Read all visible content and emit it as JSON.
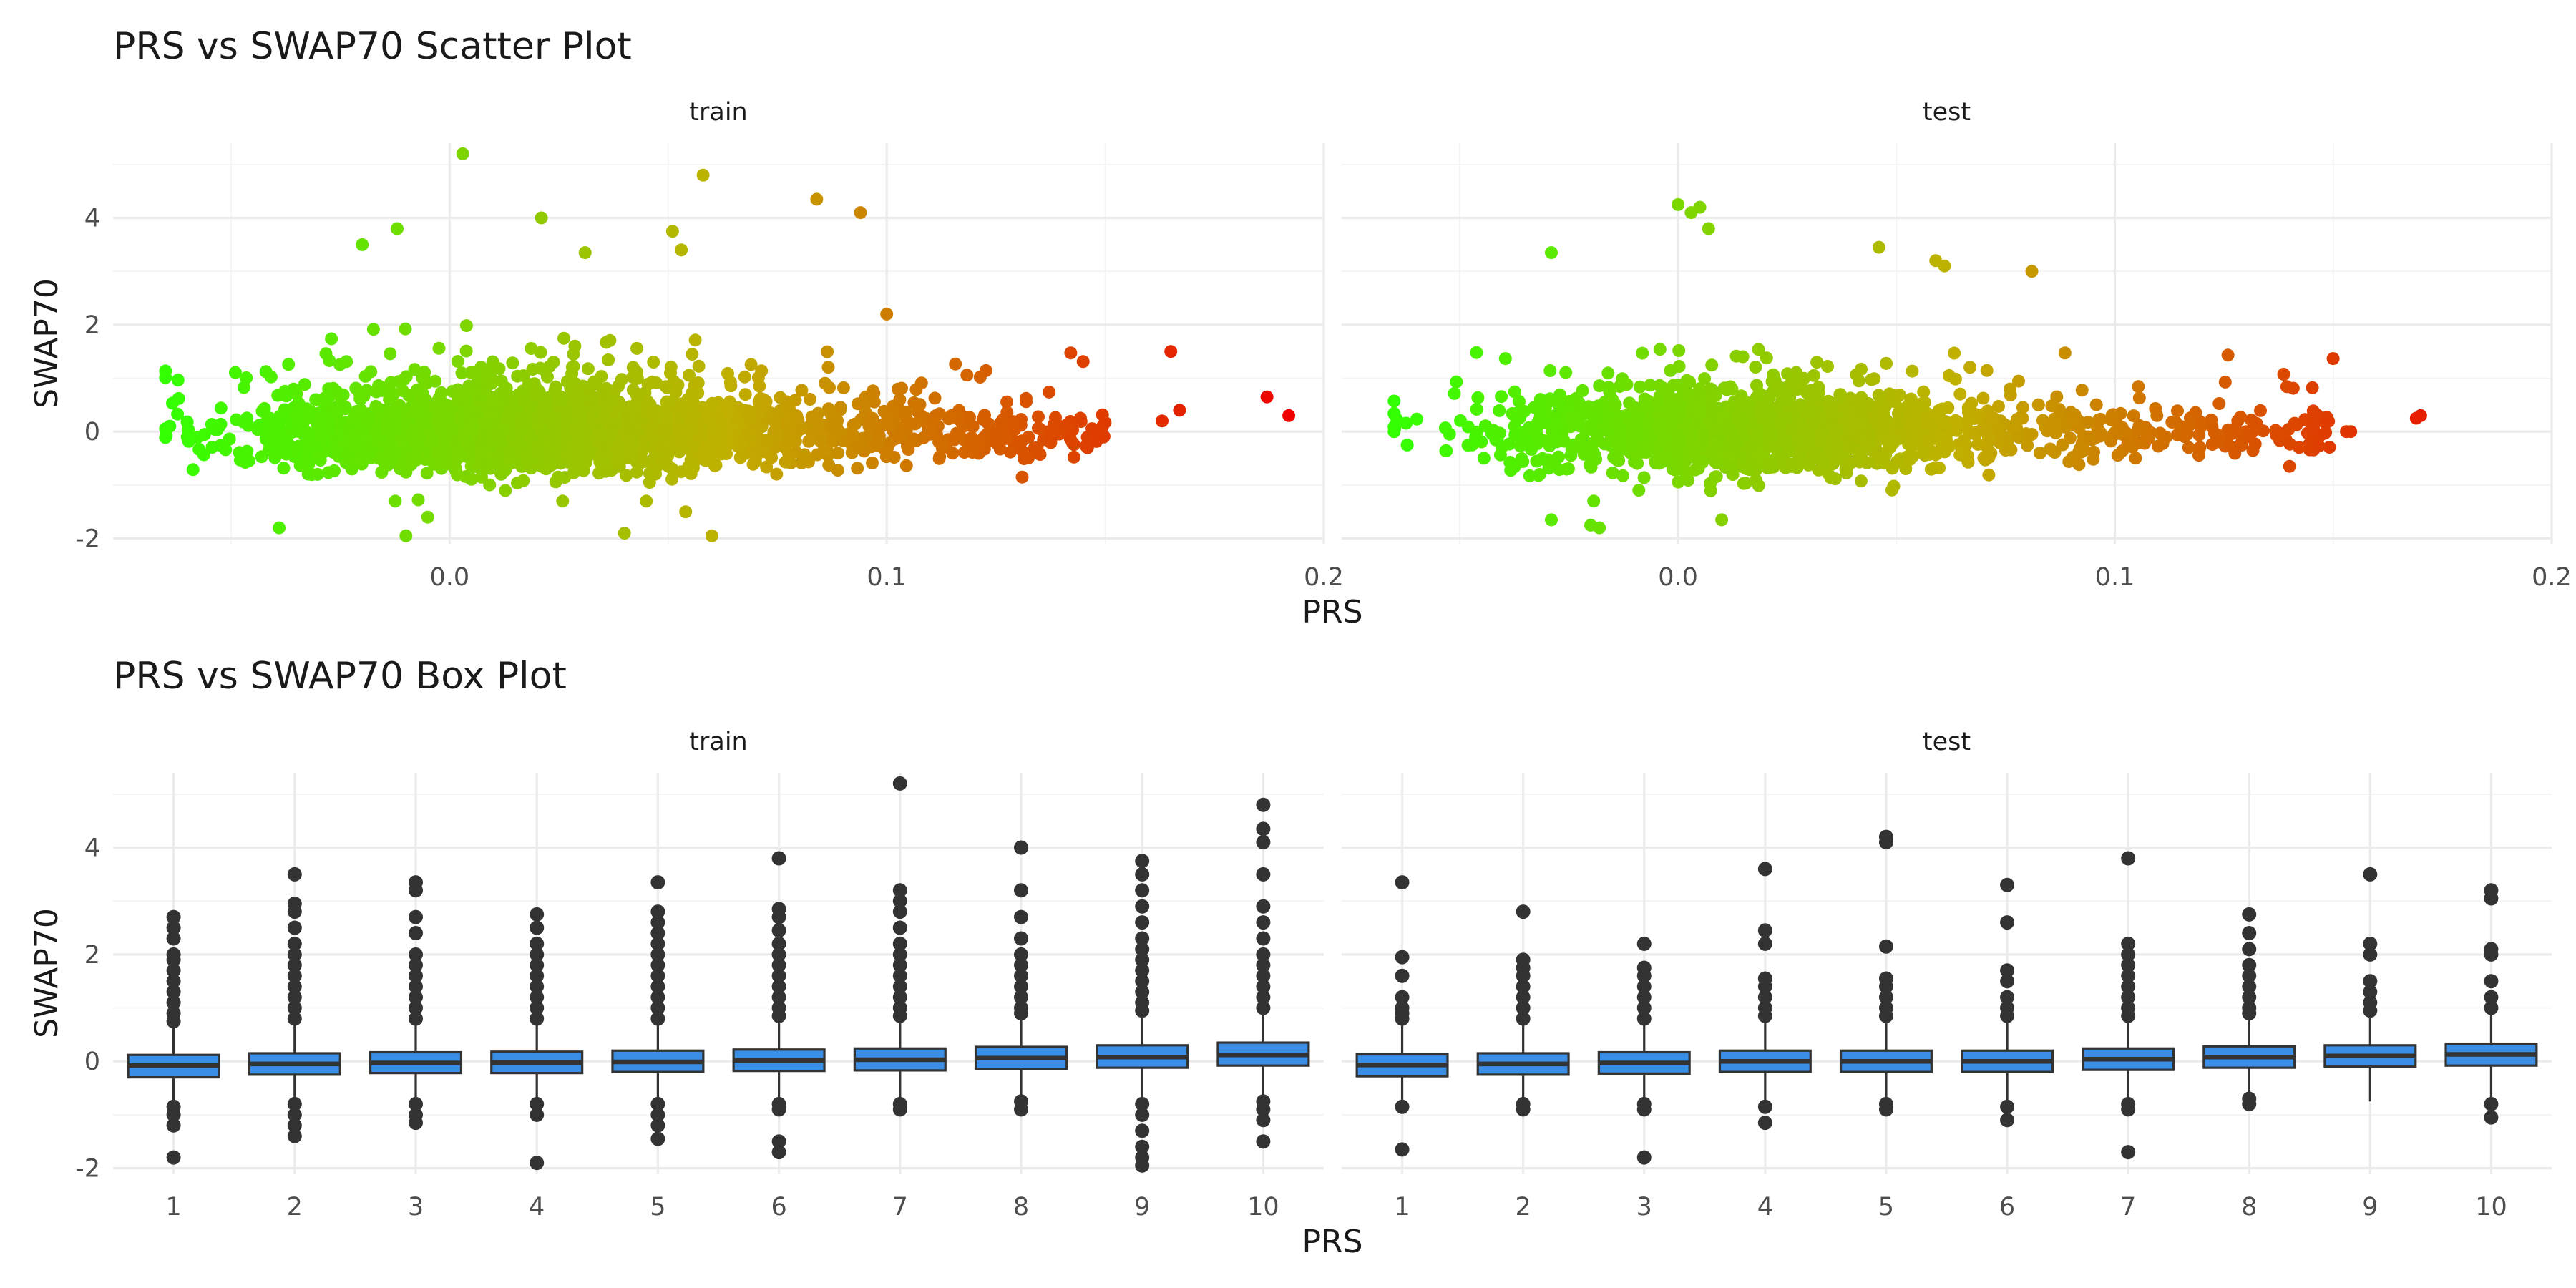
{
  "chart_data": [
    {
      "type": "scatter",
      "title": "PRS vs SWAP70 Scatter Plot",
      "xlabel": "PRS",
      "ylabel": "SWAP70",
      "xlim": [
        -0.077,
        0.2
      ],
      "ylim": [
        -2.1,
        5.4
      ],
      "x_ticks": [
        0.0,
        0.1,
        0.2
      ],
      "x_tick_labels": [
        "0.0",
        "0.1",
        "0.2"
      ],
      "y_ticks": [
        -2,
        0,
        2,
        4
      ],
      "y_tick_labels": [
        "-2",
        "0",
        "2",
        "4"
      ],
      "grid": true,
      "color_scale": {
        "low": "#33FF00",
        "mid": "#C0B000",
        "high": "#EE0000"
      },
      "facets": [
        {
          "name": "train",
          "notable_points": [
            {
              "x": 0.003,
              "y": 5.2
            },
            {
              "x": 0.058,
              "y": 4.8
            },
            {
              "x": 0.084,
              "y": 4.35
            },
            {
              "x": 0.094,
              "y": 4.1
            },
            {
              "x": 0.021,
              "y": 4.0
            },
            {
              "x": -0.012,
              "y": 3.8
            },
            {
              "x": 0.051,
              "y": 3.75
            },
            {
              "x": 0.053,
              "y": 3.4
            },
            {
              "x": -0.02,
              "y": 3.5
            },
            {
              "x": 0.031,
              "y": 3.35
            },
            {
              "x": 0.1,
              "y": 2.2
            },
            {
              "x": 0.165,
              "y": 1.5
            },
            {
              "x": 0.187,
              "y": 0.65
            },
            {
              "x": 0.192,
              "y": 0.3
            },
            {
              "x": 0.167,
              "y": 0.4
            },
            {
              "x": 0.163,
              "y": 0.2
            },
            {
              "x": 0.131,
              "y": -0.85
            },
            {
              "x": -0.039,
              "y": -1.8
            },
            {
              "x": -0.01,
              "y": -1.95
            },
            {
              "x": 0.04,
              "y": -1.9
            },
            {
              "x": 0.06,
              "y": -1.95
            },
            {
              "x": 0.045,
              "y": -1.3
            },
            {
              "x": 0.054,
              "y": -1.5
            },
            {
              "x": -0.005,
              "y": -1.6
            },
            {
              "x": -0.064,
              "y": 0.1
            },
            {
              "x": -0.06,
              "y": -0.1
            }
          ]
        },
        {
          "name": "test",
          "notable_points": [
            {
              "x": 0.005,
              "y": 4.2
            },
            {
              "x": 0.003,
              "y": 4.1
            },
            {
              "x": 0.0,
              "y": 4.25
            },
            {
              "x": 0.007,
              "y": 3.8
            },
            {
              "x": 0.046,
              "y": 3.45
            },
            {
              "x": -0.029,
              "y": 3.35
            },
            {
              "x": 0.059,
              "y": 3.2
            },
            {
              "x": 0.061,
              "y": 3.1
            },
            {
              "x": 0.081,
              "y": 3.0
            },
            {
              "x": 0.17,
              "y": 0.3
            },
            {
              "x": 0.169,
              "y": 0.25
            },
            {
              "x": 0.153,
              "y": 0.0
            },
            {
              "x": 0.154,
              "y": 0.0
            },
            {
              "x": 0.14,
              "y": -0.65
            },
            {
              "x": -0.029,
              "y": -1.65
            },
            {
              "x": -0.02,
              "y": -1.75
            },
            {
              "x": -0.018,
              "y": -1.8
            },
            {
              "x": 0.01,
              "y": -1.65
            },
            {
              "x": -0.065,
              "y": 0.0
            },
            {
              "x": -0.062,
              "y": -0.25
            }
          ]
        }
      ]
    },
    {
      "type": "box",
      "title": "PRS vs SWAP70 Box Plot",
      "xlabel": "PRS",
      "ylabel": "SWAP70",
      "categories": [
        "1",
        "2",
        "3",
        "4",
        "5",
        "6",
        "7",
        "8",
        "9",
        "10"
      ],
      "ylim": [
        -2.1,
        5.4
      ],
      "y_ticks": [
        -2,
        0,
        2,
        4
      ],
      "y_tick_labels": [
        "-2",
        "0",
        "2",
        "4"
      ],
      "grid": true,
      "box_fill": "#3A8EE6",
      "facets": [
        {
          "name": "train",
          "boxes": [
            {
              "q1": -0.3,
              "median": -0.08,
              "q3": 0.12,
              "lower": -0.8,
              "upper": 0.7,
              "outliers": [
                0.75,
                0.9,
                1.1,
                1.3,
                1.5,
                1.7,
                1.9,
                2.0,
                2.3,
                2.5,
                2.7,
                -0.85,
                -1.0,
                -1.2,
                -1.8
              ]
            },
            {
              "q1": -0.25,
              "median": -0.05,
              "q3": 0.15,
              "lower": -0.75,
              "upper": 0.75,
              "outliers": [
                0.8,
                1.0,
                1.2,
                1.4,
                1.6,
                1.8,
                2.0,
                2.2,
                2.5,
                2.8,
                2.95,
                3.5,
                -0.8,
                -1.0,
                -1.2,
                -1.4
              ]
            },
            {
              "q1": -0.22,
              "median": -0.03,
              "q3": 0.17,
              "lower": -0.75,
              "upper": 0.75,
              "outliers": [
                0.8,
                1.0,
                1.2,
                1.4,
                1.6,
                1.8,
                2.0,
                2.4,
                2.7,
                3.2,
                3.35,
                -0.8,
                -1.0,
                -1.15
              ]
            },
            {
              "q1": -0.22,
              "median": -0.02,
              "q3": 0.18,
              "lower": -0.75,
              "upper": 0.75,
              "outliers": [
                0.8,
                1.0,
                1.2,
                1.4,
                1.6,
                1.8,
                2.0,
                2.2,
                2.5,
                2.75,
                -0.8,
                -1.0,
                -1.9
              ]
            },
            {
              "q1": -0.2,
              "median": -0.01,
              "q3": 0.2,
              "lower": -0.75,
              "upper": 0.75,
              "outliers": [
                0.8,
                1.0,
                1.2,
                1.4,
                1.6,
                1.8,
                2.0,
                2.2,
                2.4,
                2.6,
                2.8,
                3.35,
                -0.8,
                -1.0,
                -1.2,
                -1.45
              ]
            },
            {
              "q1": -0.18,
              "median": 0.02,
              "q3": 0.22,
              "lower": -0.75,
              "upper": 0.8,
              "outliers": [
                0.85,
                1.0,
                1.2,
                1.4,
                1.6,
                1.8,
                2.0,
                2.2,
                2.45,
                2.7,
                2.85,
                3.8,
                -0.8,
                -0.9,
                -1.5,
                -1.7
              ]
            },
            {
              "q1": -0.17,
              "median": 0.03,
              "q3": 0.24,
              "lower": -0.75,
              "upper": 0.8,
              "outliers": [
                0.85,
                1.0,
                1.2,
                1.4,
                1.6,
                1.8,
                2.0,
                2.2,
                2.5,
                2.8,
                3.0,
                3.2,
                5.2,
                -0.8,
                -0.9
              ]
            },
            {
              "q1": -0.14,
              "median": 0.06,
              "q3": 0.27,
              "lower": -0.7,
              "upper": 0.85,
              "outliers": [
                0.9,
                1.0,
                1.2,
                1.4,
                1.6,
                1.8,
                2.0,
                2.3,
                2.7,
                3.2,
                4.0,
                -0.75,
                -0.9
              ]
            },
            {
              "q1": -0.12,
              "median": 0.08,
              "q3": 0.3,
              "lower": -0.75,
              "upper": 0.9,
              "outliers": [
                0.95,
                1.1,
                1.3,
                1.5,
                1.7,
                1.9,
                2.1,
                2.3,
                2.6,
                2.9,
                3.2,
                3.5,
                3.75,
                -0.8,
                -1.0,
                -1.3,
                -1.6,
                -1.8,
                -1.95
              ]
            },
            {
              "q1": -0.08,
              "median": 0.12,
              "q3": 0.35,
              "lower": -0.7,
              "upper": 0.95,
              "outliers": [
                1.0,
                1.2,
                1.4,
                1.6,
                1.8,
                2.0,
                2.3,
                2.6,
                2.9,
                3.5,
                4.1,
                4.35,
                4.8,
                -0.75,
                -0.9,
                -1.1,
                -1.5
              ]
            }
          ]
        },
        {
          "name": "test",
          "boxes": [
            {
              "q1": -0.28,
              "median": -0.07,
              "q3": 0.13,
              "lower": -0.8,
              "upper": 0.7,
              "outliers": [
                0.8,
                0.9,
                1.0,
                1.2,
                1.6,
                1.95,
                3.35,
                -0.85,
                -1.65
              ]
            },
            {
              "q1": -0.25,
              "median": -0.05,
              "q3": 0.15,
              "lower": -0.75,
              "upper": 0.75,
              "outliers": [
                0.8,
                1.0,
                1.2,
                1.4,
                1.6,
                1.75,
                1.9,
                2.8,
                -0.8,
                -0.9
              ]
            },
            {
              "q1": -0.23,
              "median": -0.03,
              "q3": 0.17,
              "lower": -0.75,
              "upper": 0.75,
              "outliers": [
                0.8,
                1.0,
                1.2,
                1.4,
                1.6,
                1.75,
                2.2,
                -0.8,
                -0.9,
                -1.8
              ]
            },
            {
              "q1": -0.2,
              "median": 0.0,
              "q3": 0.2,
              "lower": -0.75,
              "upper": 0.78,
              "outliers": [
                0.85,
                1.0,
                1.2,
                1.4,
                1.55,
                2.2,
                2.45,
                3.6,
                -0.85,
                -1.15
              ]
            },
            {
              "q1": -0.2,
              "median": 0.0,
              "q3": 0.2,
              "lower": -0.75,
              "upper": 0.78,
              "outliers": [
                0.85,
                1.0,
                1.2,
                1.4,
                1.55,
                2.15,
                4.1,
                4.2,
                -0.8,
                -0.9
              ]
            },
            {
              "q1": -0.2,
              "median": 0.0,
              "q3": 0.2,
              "lower": -0.75,
              "upper": 0.78,
              "outliers": [
                0.85,
                1.0,
                1.2,
                1.5,
                1.7,
                2.6,
                3.3,
                -0.85,
                -1.1
              ]
            },
            {
              "q1": -0.16,
              "median": 0.04,
              "q3": 0.24,
              "lower": -0.75,
              "upper": 0.8,
              "outliers": [
                0.85,
                1.0,
                1.2,
                1.4,
                1.6,
                1.8,
                2.0,
                2.2,
                3.8,
                -0.8,
                -0.9,
                -1.7
              ]
            },
            {
              "q1": -0.12,
              "median": 0.08,
              "q3": 0.28,
              "lower": -0.68,
              "upper": 0.85,
              "outliers": [
                0.9,
                1.0,
                1.2,
                1.4,
                1.6,
                1.8,
                2.1,
                2.4,
                2.75,
                -0.7,
                -0.8
              ]
            },
            {
              "q1": -0.1,
              "median": 0.1,
              "q3": 0.3,
              "lower": -0.75,
              "upper": 0.9,
              "outliers": [
                0.95,
                1.1,
                1.3,
                1.5,
                2.0,
                2.2,
                3.5
              ]
            },
            {
              "q1": -0.08,
              "median": 0.13,
              "q3": 0.33,
              "lower": -0.75,
              "upper": 0.95,
              "outliers": [
                1.0,
                1.2,
                1.5,
                2.0,
                2.1,
                3.05,
                3.2,
                -0.8,
                -1.05
              ]
            }
          ]
        }
      ]
    }
  ]
}
